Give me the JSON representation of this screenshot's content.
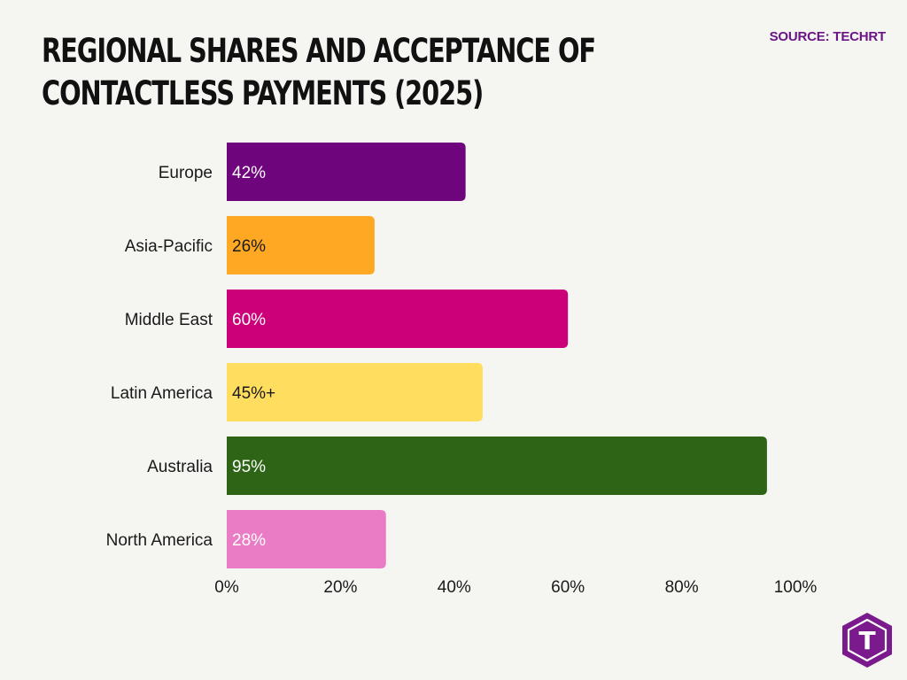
{
  "header": {
    "title_line1": "REGIONAL SHARES AND ACCEPTANCE OF",
    "title_line2": "CONTACTLESS PAYMENTS (2025)",
    "source": "SOURCE: TECHRT"
  },
  "logo": {
    "icon": "techrt-logo-icon",
    "letter": "T",
    "color": "#7a1a8c"
  },
  "chart_data": {
    "type": "bar",
    "orientation": "horizontal",
    "title": "REGIONAL SHARES AND ACCEPTANCE OF CONTACTLESS PAYMENTS (2025)",
    "categories": [
      "Europe",
      "Asia-Pacific",
      "Middle East",
      "Latin America",
      "Australia",
      "North America"
    ],
    "values": [
      42,
      26,
      60,
      45,
      95,
      28
    ],
    "labels": [
      "42%",
      "26%",
      "60%",
      "45%+",
      "95%",
      "28%"
    ],
    "colors": [
      "#6e057d",
      "#ffa824",
      "#cc0078",
      "#ffdd5e",
      "#2e6416",
      "#ea7cc6"
    ],
    "label_colors": [
      "#ffffff",
      "#1a1a1a",
      "#ffffff",
      "#1a1a1a",
      "#ffffff",
      "#ffffff"
    ],
    "xlim": [
      0,
      100
    ],
    "xticks": [
      0,
      20,
      40,
      60,
      80,
      100
    ],
    "xtick_labels": [
      "0%",
      "20%",
      "40%",
      "60%",
      "80%",
      "100%"
    ],
    "xlabel": "",
    "ylabel": "",
    "grid": false,
    "legend": "none"
  }
}
